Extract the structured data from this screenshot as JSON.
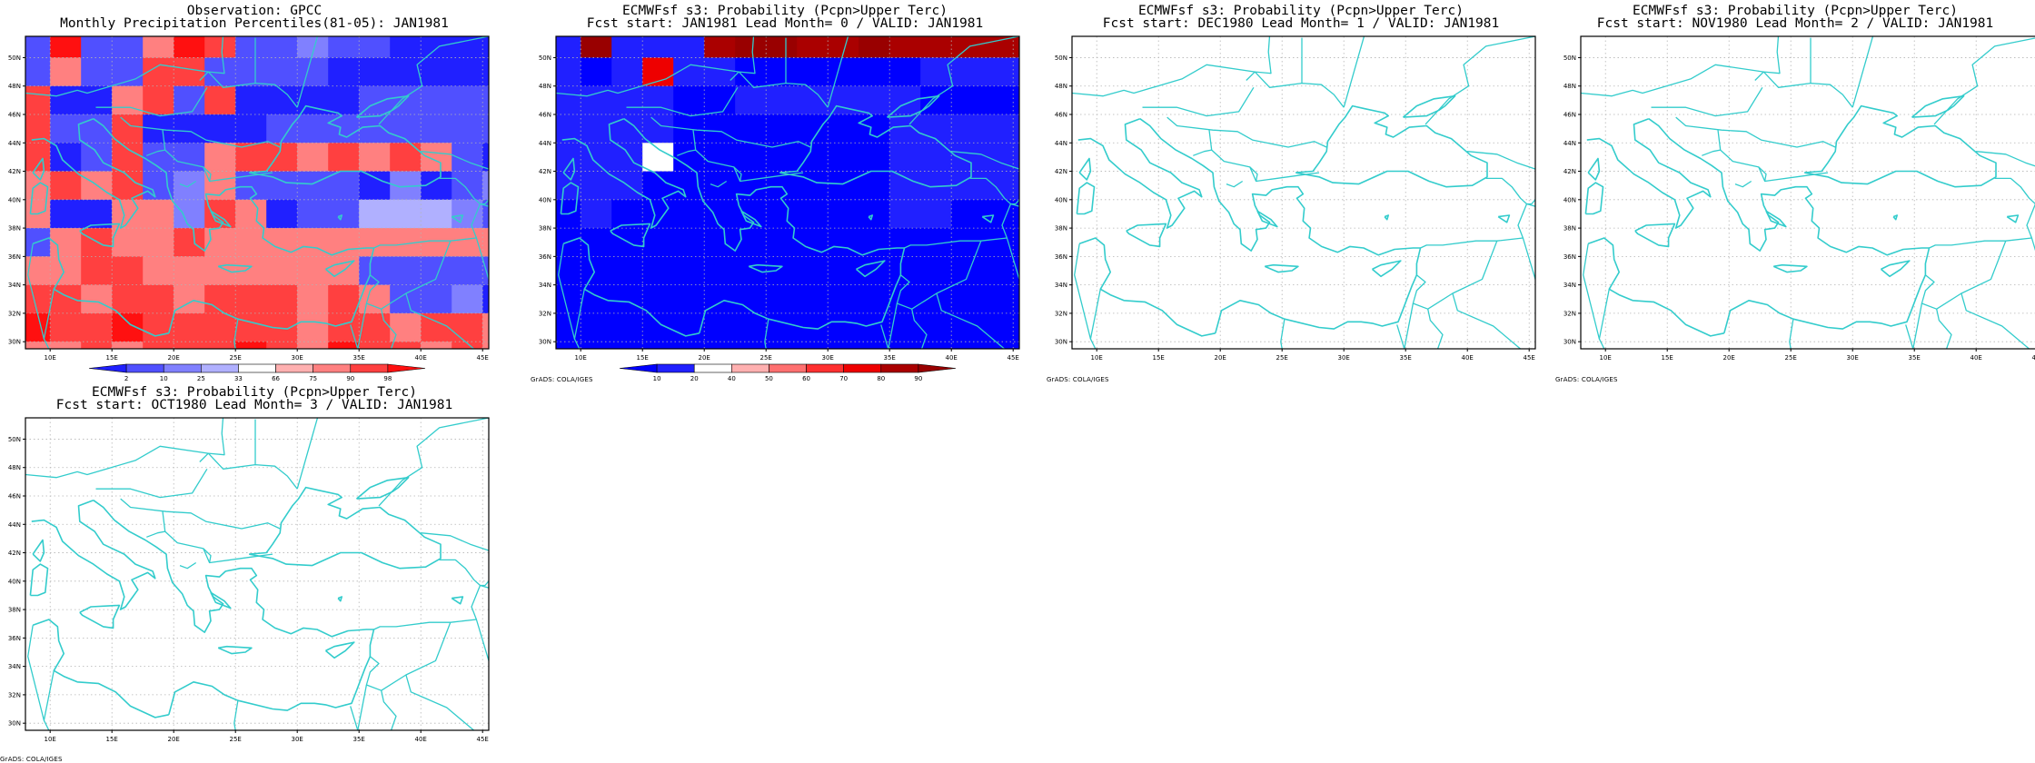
{
  "lon_ticks": [
    "10E",
    "15E",
    "20E",
    "25E",
    "30E",
    "35E",
    "40E",
    "45E"
  ],
  "lat_ticks": [
    "30N",
    "32N",
    "34N",
    "36N",
    "38N",
    "40N",
    "42N",
    "44N",
    "46N",
    "48N",
    "50N"
  ],
  "colors": {
    "coast": "#33cccc",
    "grid": "#b4b4b4",
    "frame": "#000000"
  },
  "credit": "GrADS: COLA/IGES",
  "panels": [
    {
      "id": "obs",
      "title_line1": "Observation: GPCC",
      "title_line2": "Monthly Precipitation Percentiles(81-05): JAN1981",
      "legend": {
        "labels": [
          "2",
          "10",
          "25",
          "33",
          "66",
          "75",
          "90",
          "98"
        ],
        "colors": [
          "#2020ff",
          "#5050ff",
          "#8080ff",
          "#b0b0ff",
          "#ffffff",
          "#ffb0b0",
          "#ff8080",
          "#ff4040",
          "#ff1010"
        ]
      },
      "grid": [
        [
          1,
          8,
          1,
          1,
          6,
          8,
          7,
          1,
          1,
          2,
          1,
          1,
          0,
          0,
          0,
          0
        ],
        [
          1,
          6,
          1,
          1,
          7,
          7,
          1,
          1,
          1,
          1,
          0,
          0,
          0,
          0,
          0,
          0
        ],
        [
          7,
          0,
          0,
          6,
          7,
          1,
          7,
          0,
          0,
          0,
          0,
          1,
          1,
          1,
          1,
          1
        ],
        [
          7,
          1,
          1,
          7,
          0,
          0,
          0,
          0,
          1,
          1,
          1,
          1,
          1,
          1,
          1,
          1
        ],
        [
          7,
          0,
          1,
          7,
          1,
          1,
          6,
          7,
          7,
          6,
          7,
          6,
          7,
          6,
          1,
          0
        ],
        [
          6,
          7,
          6,
          7,
          1,
          2,
          6,
          1,
          1,
          1,
          1,
          0,
          2,
          0,
          1,
          2
        ],
        [
          6,
          0,
          0,
          6,
          6,
          2,
          7,
          6,
          0,
          1,
          1,
          3,
          3,
          3,
          2,
          1
        ],
        [
          1,
          6,
          7,
          6,
          6,
          7,
          6,
          6,
          6,
          6,
          6,
          6,
          6,
          6,
          6,
          6
        ],
        [
          6,
          6,
          7,
          7,
          6,
          6,
          6,
          6,
          6,
          6,
          6,
          1,
          1,
          1,
          1,
          1
        ],
        [
          7,
          7,
          6,
          7,
          7,
          6,
          7,
          7,
          7,
          6,
          7,
          6,
          1,
          1,
          2,
          0
        ],
        [
          8,
          7,
          7,
          8,
          7,
          7,
          7,
          7,
          7,
          6,
          7,
          7,
          6,
          7,
          7,
          6
        ],
        [
          6,
          6,
          7,
          6,
          7,
          7,
          7,
          8,
          7,
          6,
          8,
          7,
          7,
          6,
          7,
          6
        ]
      ]
    },
    {
      "id": "lead0",
      "title_line1": "ECMWFsf s3: Probability (Pcpn>Upper Terc)",
      "title_line2": "Fcst start: JAN1981  Lead Month= 0 / VALID: JAN1981",
      "legend": {
        "labels": [
          "10",
          "20",
          "40",
          "50",
          "60",
          "70",
          "80",
          "90"
        ],
        "colors": [
          "#0000ff",
          "#2020ff",
          "#ffffff",
          "#ffb0b0",
          "#ff7070",
          "#ff3030",
          "#ee0000",
          "#aa0000",
          "#990000"
        ]
      },
      "grid": [
        [
          1,
          8,
          1,
          1,
          1,
          7,
          8,
          8,
          7,
          7,
          8,
          7,
          7,
          7,
          7,
          7
        ],
        [
          1,
          0,
          1,
          6,
          1,
          1,
          0,
          0,
          0,
          0,
          0,
          0,
          1,
          1,
          1,
          1
        ],
        [
          1,
          1,
          1,
          1,
          0,
          0,
          1,
          1,
          1,
          1,
          1,
          1,
          0,
          0,
          0,
          0
        ],
        [
          1,
          1,
          1,
          1,
          0,
          0,
          0,
          0,
          0,
          0,
          0,
          1,
          1,
          1,
          1,
          1
        ],
        [
          1,
          1,
          1,
          2,
          0,
          0,
          0,
          0,
          0,
          0,
          0,
          1,
          1,
          1,
          1,
          1
        ],
        [
          1,
          1,
          1,
          0,
          0,
          0,
          0,
          0,
          0,
          0,
          0,
          1,
          1,
          1,
          1,
          1
        ],
        [
          0,
          1,
          0,
          0,
          0,
          0,
          0,
          0,
          0,
          0,
          0,
          1,
          1,
          0,
          0,
          0
        ],
        [
          0,
          0,
          0,
          0,
          0,
          0,
          0,
          0,
          0,
          0,
          0,
          0,
          0,
          0,
          0,
          0
        ],
        [
          0,
          0,
          0,
          0,
          0,
          0,
          0,
          0,
          0,
          0,
          0,
          0,
          0,
          0,
          0,
          0
        ],
        [
          0,
          0,
          0,
          0,
          0,
          0,
          0,
          0,
          0,
          0,
          0,
          0,
          0,
          0,
          0,
          0
        ],
        [
          0,
          0,
          0,
          0,
          0,
          0,
          0,
          0,
          0,
          0,
          0,
          0,
          0,
          0,
          0,
          0
        ],
        [
          0,
          0,
          0,
          0,
          0,
          0,
          0,
          0,
          0,
          0,
          0,
          0,
          0,
          0,
          0,
          0
        ]
      ]
    },
    {
      "id": "lead1",
      "title_line1": "ECMWFsf s3: Probability (Pcpn>Upper Terc)",
      "title_line2": "Fcst start: DEC1980  Lead Month= 1 / VALID: JAN1981"
    },
    {
      "id": "lead2",
      "title_line1": "ECMWFsf s3: Probability (Pcpn>Upper Terc)",
      "title_line2": "Fcst start: NOV1980  Lead Month= 2 / VALID: JAN1981"
    },
    {
      "id": "lead3",
      "title_line1": "ECMWFsf s3: Probability (Pcpn>Upper Terc)",
      "title_line2": "Fcst start: OCT1980  Lead Month= 3 / VALID: JAN1981"
    }
  ]
}
